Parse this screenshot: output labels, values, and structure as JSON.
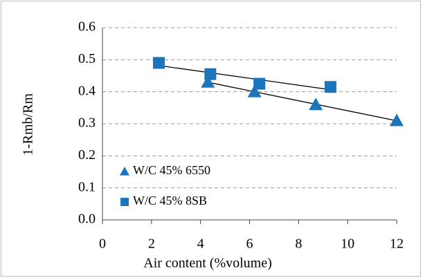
{
  "chart_data": {
    "type": "scatter",
    "xlabel": "Air content (%volume)",
    "ylabel": "1-Rmb/Rm",
    "xlim": [
      0,
      12
    ],
    "xticks": [
      0,
      2,
      4,
      6,
      8,
      10,
      12
    ],
    "ylim": [
      0,
      0.6
    ],
    "yticks": [
      {
        "value": 0,
        "label": "0.0"
      },
      0.1,
      0.2,
      0.3,
      0.4,
      0.5,
      0.6
    ],
    "grid": true,
    "legend": "lower left",
    "trendline": true,
    "series": [
      {
        "name": "W/C 45% 6550",
        "color": "#1a75bc",
        "marker": "triangle",
        "x": [
          4.3,
          6.2,
          8.7,
          12.0
        ],
        "values": [
          0.43,
          0.4,
          0.36,
          0.31
        ]
      },
      {
        "name": "W/C 45% 8SB",
        "color": "#1a75bc",
        "marker": "square",
        "x": [
          2.3,
          4.4,
          6.4,
          9.3
        ],
        "values": [
          0.49,
          0.455,
          0.425,
          0.415
        ]
      }
    ]
  }
}
